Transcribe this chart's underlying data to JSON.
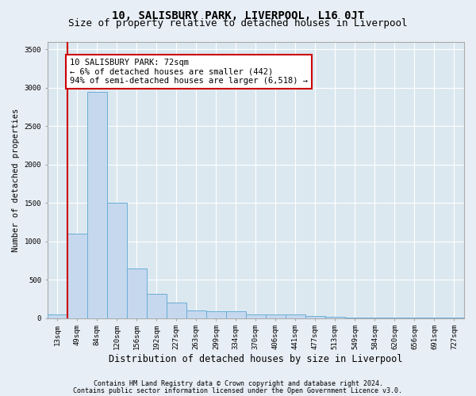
{
  "title": "10, SALISBURY PARK, LIVERPOOL, L16 0JT",
  "subtitle": "Size of property relative to detached houses in Liverpool",
  "xlabel": "Distribution of detached houses by size in Liverpool",
  "ylabel": "Number of detached properties",
  "bin_labels": [
    "13sqm",
    "49sqm",
    "84sqm",
    "120sqm",
    "156sqm",
    "192sqm",
    "227sqm",
    "263sqm",
    "299sqm",
    "334sqm",
    "370sqm",
    "406sqm",
    "441sqm",
    "477sqm",
    "513sqm",
    "549sqm",
    "584sqm",
    "620sqm",
    "656sqm",
    "691sqm",
    "727sqm"
  ],
  "bar_heights": [
    50,
    1100,
    2950,
    1500,
    650,
    320,
    200,
    95,
    90,
    85,
    50,
    45,
    45,
    22,
    12,
    8,
    6,
    5,
    4,
    4,
    3
  ],
  "bar_color": "#c5d8ee",
  "bar_edge_color": "#6aaed6",
  "annotation_box_text": "10 SALISBURY PARK: 72sqm\n← 6% of detached houses are smaller (442)\n94% of semi-detached houses are larger (6,518) →",
  "annotation_box_color": "white",
  "annotation_box_edge_color": "#cc0000",
  "vline_color": "#cc0000",
  "vline_x": 0.52,
  "ylim": [
    0,
    3600
  ],
  "yticks": [
    0,
    500,
    1000,
    1500,
    2000,
    2500,
    3000,
    3500
  ],
  "footnote1": "Contains HM Land Registry data © Crown copyright and database right 2024.",
  "footnote2": "Contains public sector information licensed under the Open Government Licence v3.0.",
  "background_color": "#e8eef5",
  "plot_bg_color": "#dce8f0",
  "title_fontsize": 10,
  "subtitle_fontsize": 9,
  "xlabel_fontsize": 8.5,
  "ylabel_fontsize": 7.5,
  "tick_fontsize": 6.5,
  "annotation_fontsize": 7.5,
  "footnote_fontsize": 6
}
